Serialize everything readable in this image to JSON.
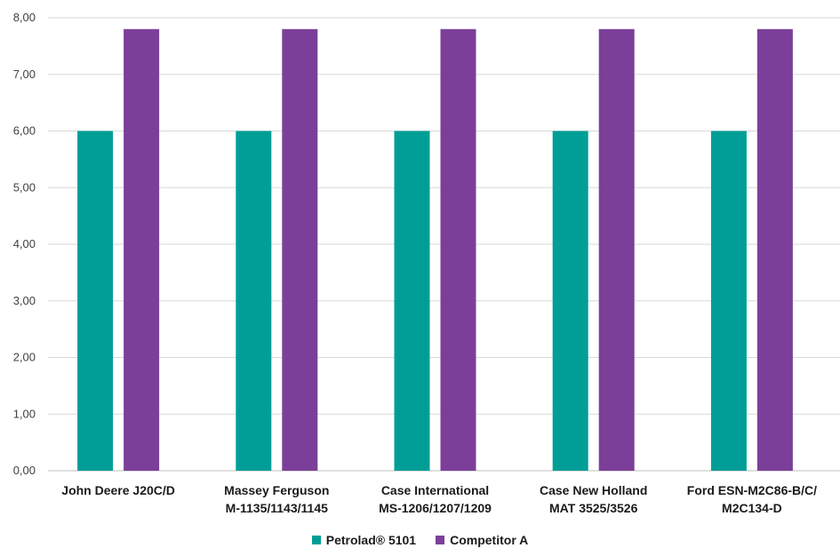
{
  "chart_data": {
    "type": "bar",
    "categories": [
      [
        "John Deere J20C/D"
      ],
      [
        "Massey Ferguson",
        "M-1135/1143/1145"
      ],
      [
        "Case International",
        "MS-1206/1207/1209"
      ],
      [
        "Case New Holland",
        "MAT 3525/3526"
      ],
      [
        "Ford ESN-M2C86-B/C/",
        "M2C134-D"
      ]
    ],
    "series": [
      {
        "name": "Petrolad® 5101",
        "color": "#009E96",
        "values": [
          6.0,
          6.0,
          6.0,
          6.0,
          6.0
        ]
      },
      {
        "name": "Competitor A",
        "color": "#7B3F99",
        "values": [
          7.8,
          7.8,
          7.8,
          7.8,
          7.8
        ]
      }
    ],
    "ylim": [
      0,
      8
    ],
    "yticks": [
      "0,00",
      "1,00",
      "2,00",
      "3,00",
      "4,00",
      "5,00",
      "6,00",
      "7,00",
      "8,00"
    ],
    "grid": true,
    "legend_position": "bottom",
    "title": "",
    "xlabel": "",
    "ylabel": ""
  }
}
